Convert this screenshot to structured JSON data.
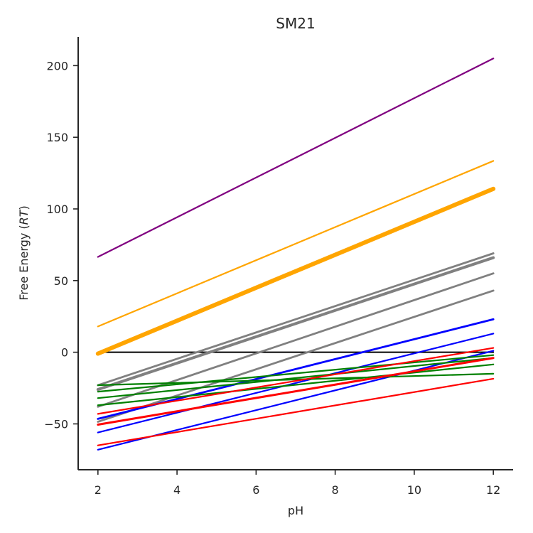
{
  "chart_data": {
    "type": "line",
    "title": "SM21",
    "xlabel": "pH",
    "ylabel_prefix": "Free Energy (",
    "ylabel_italic": "RT",
    "ylabel_suffix": ")",
    "xlim": [
      1.5,
      12.5
    ],
    "ylim": [
      -82,
      220
    ],
    "xticks": [
      2,
      4,
      6,
      8,
      10,
      12
    ],
    "yticks": [
      -50,
      0,
      50,
      100,
      150,
      200
    ],
    "grid": false,
    "legend": "none",
    "series": [
      {
        "x": [
          2,
          12
        ],
        "y": [
          0,
          0
        ],
        "color": "#000000",
        "width": 2
      },
      {
        "x": [
          2,
          12
        ],
        "y": [
          66.5,
          205
        ],
        "color": "#800080",
        "width": 2.2
      },
      {
        "x": [
          2,
          12
        ],
        "y": [
          18,
          133.5
        ],
        "color": "#FFA500",
        "width": 2.2
      },
      {
        "x": [
          2,
          12
        ],
        "y": [
          -1,
          114
        ],
        "color": "#FFA500",
        "width": 6
      },
      {
        "x": [
          2,
          12
        ],
        "y": [
          -23,
          69
        ],
        "color": "#808080",
        "width": 2.8
      },
      {
        "x": [
          2,
          12
        ],
        "y": [
          -26,
          66
        ],
        "color": "#808080",
        "width": 4
      },
      {
        "x": [
          2,
          12
        ],
        "y": [
          -38,
          55
        ],
        "color": "#808080",
        "width": 2.8
      },
      {
        "x": [
          2,
          12
        ],
        "y": [
          -48.5,
          43
        ],
        "color": "#808080",
        "width": 2.8
      },
      {
        "x": [
          2,
          12
        ],
        "y": [
          -46.5,
          23
        ],
        "color": "#0000FF",
        "width": 2.8
      },
      {
        "x": [
          2,
          12
        ],
        "y": [
          -56,
          13
        ],
        "color": "#0000FF",
        "width": 2.2
      },
      {
        "x": [
          2,
          12
        ],
        "y": [
          -68,
          1
        ],
        "color": "#0000FF",
        "width": 2.2
      },
      {
        "x": [
          2,
          12
        ],
        "y": [
          -27.5,
          -2
        ],
        "color": "#008000",
        "width": 2.2
      },
      {
        "x": [
          2,
          12
        ],
        "y": [
          -32,
          -4
        ],
        "color": "#008000",
        "width": 2.2
      },
      {
        "x": [
          2,
          12
        ],
        "y": [
          -37,
          -8.5
        ],
        "color": "#008000",
        "width": 2.2
      },
      {
        "x": [
          2,
          12
        ],
        "y": [
          -23,
          -15
        ],
        "color": "#008000",
        "width": 2.2
      },
      {
        "x": [
          2,
          12
        ],
        "y": [
          -43,
          3
        ],
        "color": "#FF0000",
        "width": 2.2
      },
      {
        "x": [
          2,
          12
        ],
        "y": [
          -50.5,
          -4
        ],
        "color": "#FF0000",
        "width": 3
      },
      {
        "x": [
          2,
          12
        ],
        "y": [
          -65,
          -18.5
        ],
        "color": "#FF0000",
        "width": 2.2
      }
    ]
  }
}
